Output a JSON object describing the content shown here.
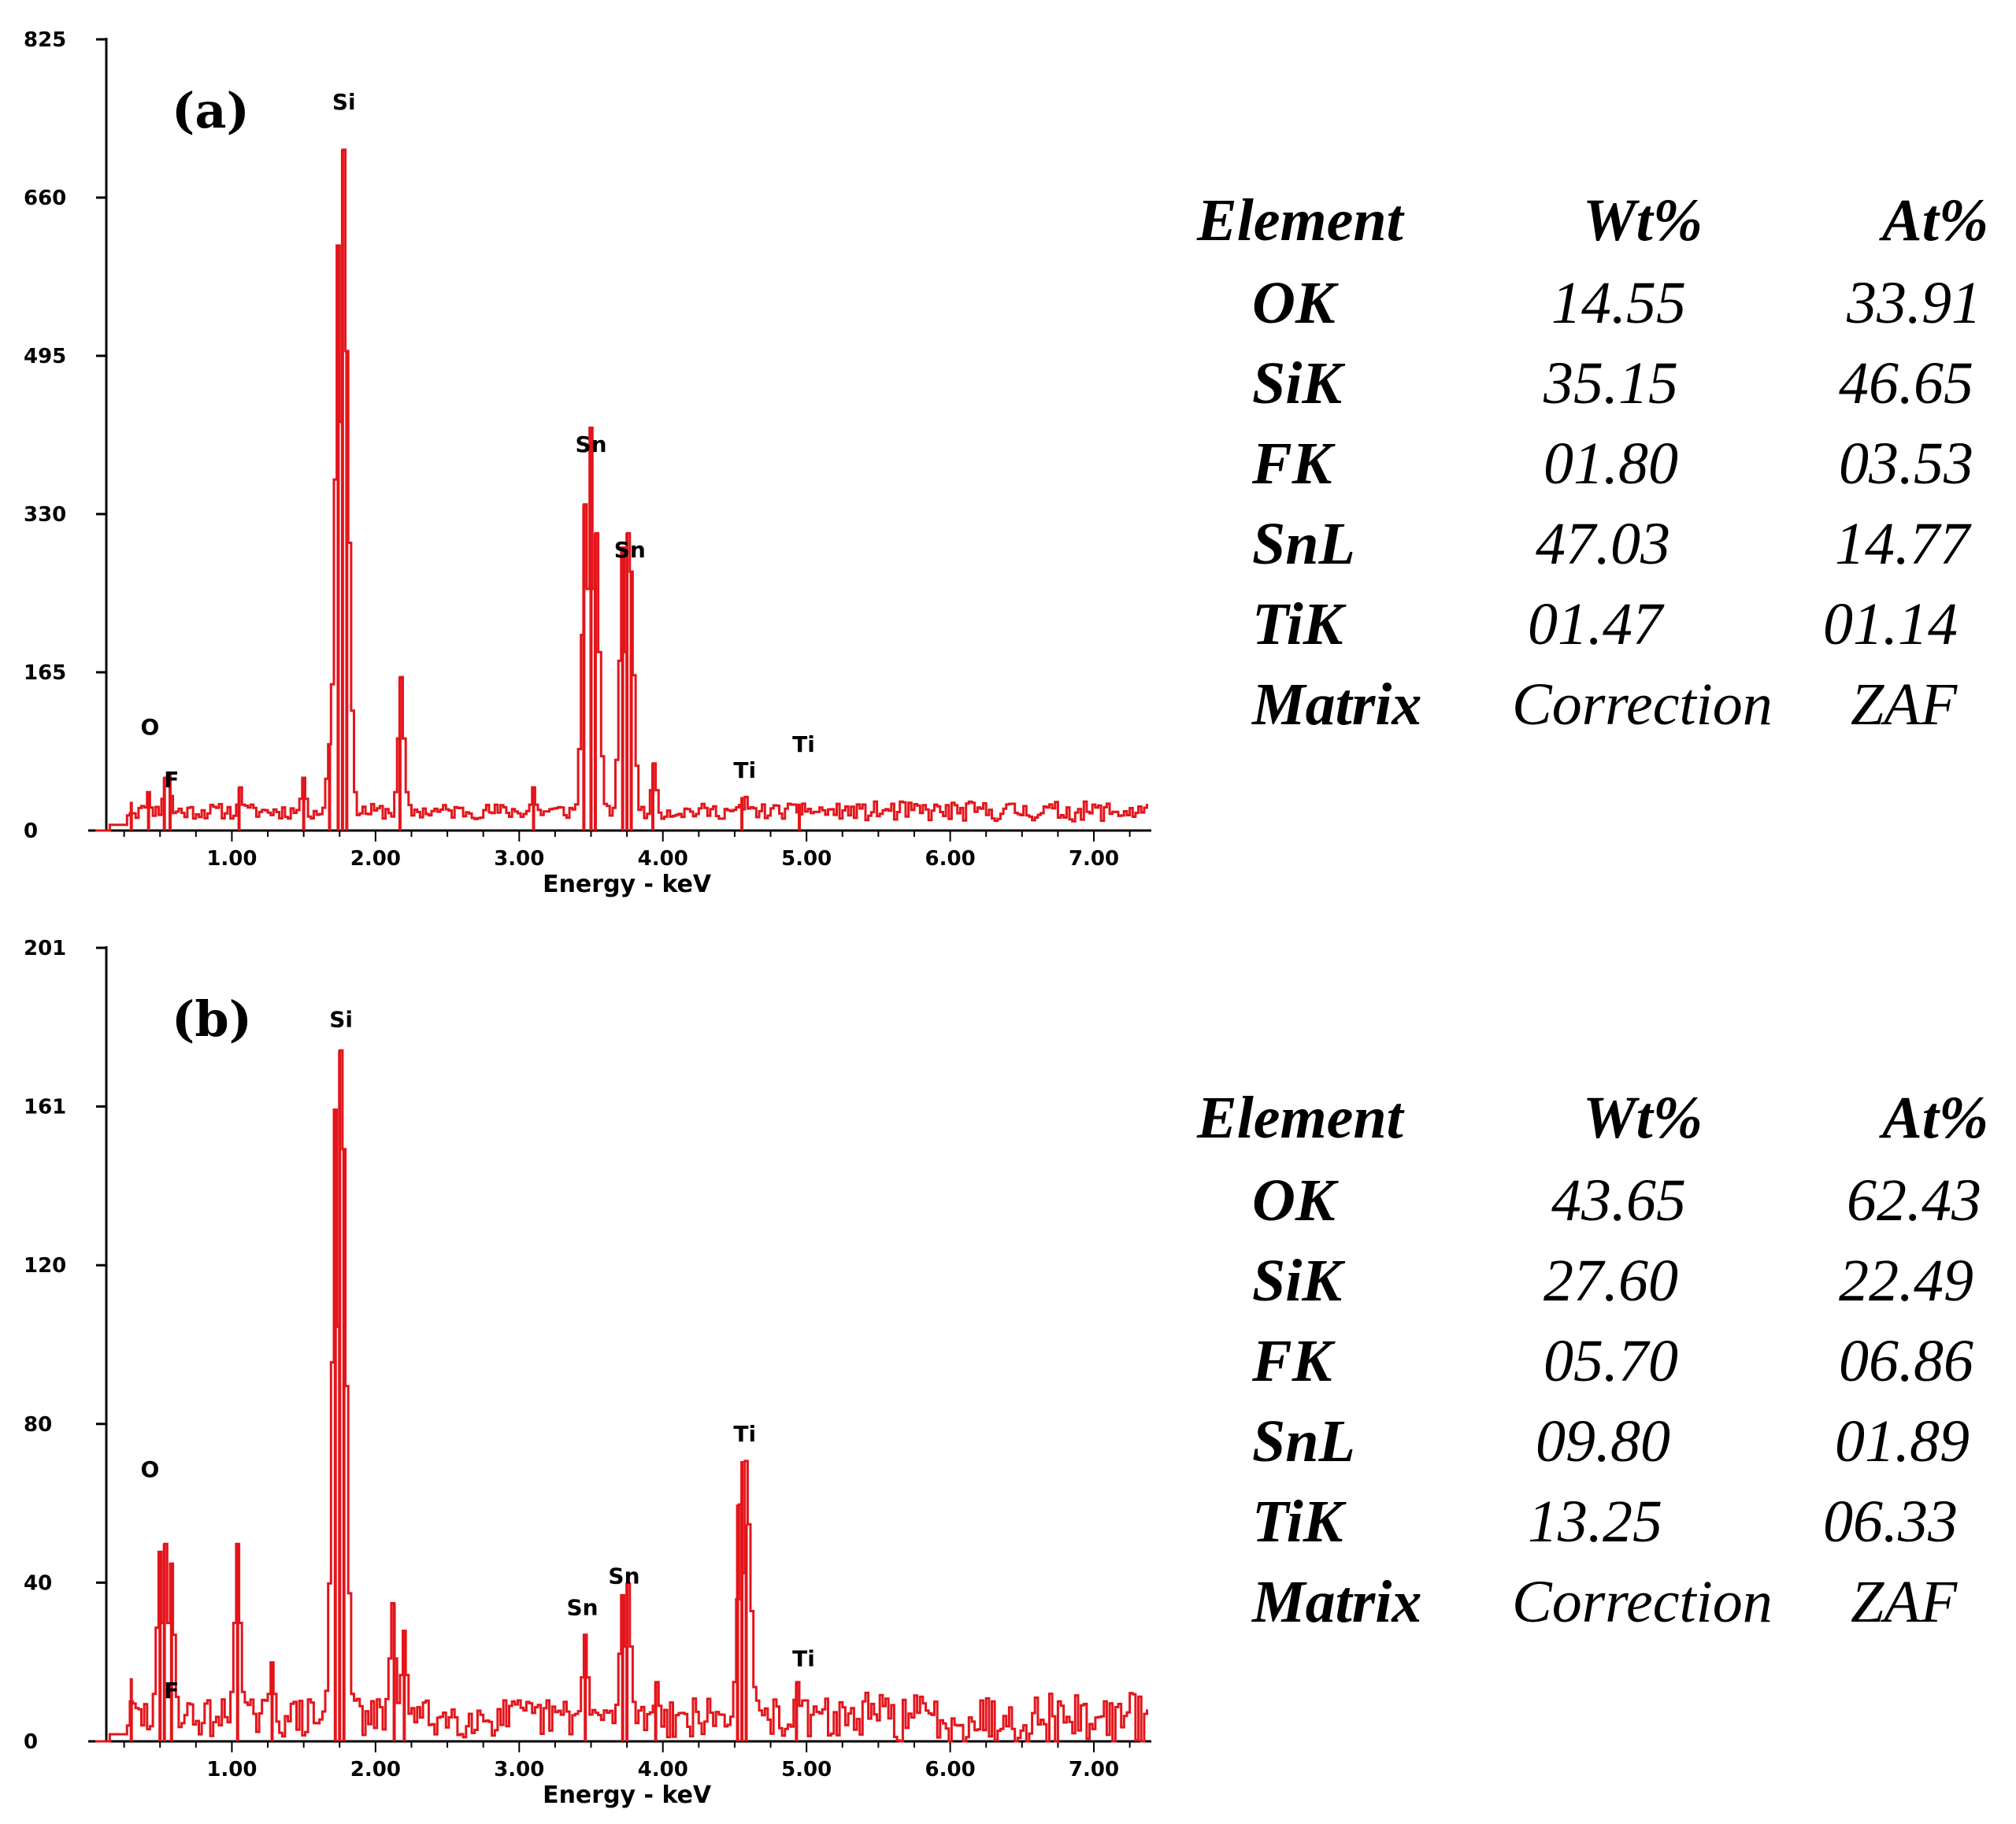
{
  "colors": {
    "spectrum": "#e3151b",
    "axis": "#000000"
  },
  "chart_data": [
    {
      "type": "line",
      "panel_label": "(a)",
      "title": "",
      "xlabel": "Energy - keV",
      "ylabel": "",
      "xlim": [
        0,
        7.4
      ],
      "ylim": [
        0,
        825
      ],
      "yticks": [
        "0",
        "165",
        "330",
        "495",
        "660",
        "825"
      ],
      "xticks": [
        "1.00",
        "2.00",
        "3.00",
        "4.00",
        "5.00",
        "6.00",
        "7.00"
      ],
      "peaks": [
        {
          "x": 0.3,
          "y": 30
        },
        {
          "x": 0.42,
          "y": 40
        },
        {
          "x": 0.53,
          "y": 55
        },
        {
          "x": 0.57,
          "y": 60
        },
        {
          "x": 1.05,
          "y": 45
        },
        {
          "x": 1.5,
          "y": 55
        },
        {
          "x": 1.68,
          "y": 90
        },
        {
          "x": 1.74,
          "y": 610
        },
        {
          "x": 1.77,
          "y": 710
        },
        {
          "x": 1.8,
          "y": 500
        },
        {
          "x": 2.17,
          "y": 160
        },
        {
          "x": 3.1,
          "y": 45
        },
        {
          "x": 3.45,
          "y": 340
        },
        {
          "x": 3.5,
          "y": 420
        },
        {
          "x": 3.53,
          "y": 310
        },
        {
          "x": 3.72,
          "y": 295
        },
        {
          "x": 3.75,
          "y": 310
        },
        {
          "x": 3.78,
          "y": 270
        },
        {
          "x": 3.93,
          "y": 70
        },
        {
          "x": 4.55,
          "y": 35
        },
        {
          "x": 4.95,
          "y": 28
        }
      ],
      "peak_labels": [
        {
          "text": "O",
          "x": 0.43,
          "y": 100
        },
        {
          "text": "F",
          "x": 0.58,
          "y": 45
        },
        {
          "text": "Si",
          "x": 1.78,
          "y": 752
        },
        {
          "text": "Sn",
          "x": 3.5,
          "y": 395
        },
        {
          "text": "Sn",
          "x": 3.77,
          "y": 285
        },
        {
          "text": "Ti",
          "x": 4.57,
          "y": 55
        },
        {
          "text": "Ti",
          "x": 4.98,
          "y": 82
        }
      ],
      "table": {
        "headers": [
          "Element",
          "Wt%",
          "At%"
        ],
        "rows": [
          {
            "element": "OK",
            "wt": "14.55",
            "at": "33.91"
          },
          {
            "element": "SiK",
            "wt": "35.15",
            "at": "46.65"
          },
          {
            "element": "FK",
            "wt": "01.80",
            "at": "03.53"
          },
          {
            "element": "SnL",
            "wt": "47.03",
            "at": "14.77"
          },
          {
            "element": "TiK",
            "wt": "01.47",
            "at": "01.14"
          },
          {
            "element": "Matrix",
            "wt": "Correction",
            "at": "ZAF"
          }
        ]
      }
    },
    {
      "type": "line",
      "panel_label": "(b)",
      "title": "",
      "xlabel": "Energy - keV",
      "ylabel": "",
      "xlim": [
        0,
        7.4
      ],
      "ylim": [
        0,
        201
      ],
      "yticks": [
        "0",
        "40",
        "80",
        "120",
        "161",
        "201"
      ],
      "xticks": [
        "1.00",
        "2.00",
        "3.00",
        "4.00",
        "5.00",
        "6.00",
        "7.00"
      ],
      "peaks": [
        {
          "x": 0.3,
          "y": 16
        },
        {
          "x": 0.5,
          "y": 48
        },
        {
          "x": 0.53,
          "y": 50
        },
        {
          "x": 0.58,
          "y": 45
        },
        {
          "x": 1.04,
          "y": 50
        },
        {
          "x": 1.28,
          "y": 20
        },
        {
          "x": 1.72,
          "y": 160
        },
        {
          "x": 1.75,
          "y": 175
        },
        {
          "x": 1.78,
          "y": 150
        },
        {
          "x": 2.13,
          "y": 35
        },
        {
          "x": 2.2,
          "y": 28
        },
        {
          "x": 3.46,
          "y": 27
        },
        {
          "x": 3.72,
          "y": 37
        },
        {
          "x": 3.75,
          "y": 40
        },
        {
          "x": 3.95,
          "y": 15
        },
        {
          "x": 4.52,
          "y": 60
        },
        {
          "x": 4.55,
          "y": 71
        },
        {
          "x": 4.58,
          "y": 55
        },
        {
          "x": 4.93,
          "y": 15
        }
      ],
      "peak_labels": [
        {
          "text": "O",
          "x": 0.43,
          "y": 67
        },
        {
          "text": "F",
          "x": 0.58,
          "y": 11
        },
        {
          "text": "Si",
          "x": 1.76,
          "y": 181
        },
        {
          "text": "Sn",
          "x": 3.44,
          "y": 32
        },
        {
          "text": "Sn",
          "x": 3.73,
          "y": 40
        },
        {
          "text": "Ti",
          "x": 4.57,
          "y": 76
        },
        {
          "text": "Ti",
          "x": 4.98,
          "y": 19
        }
      ],
      "table": {
        "headers": [
          "Element",
          "Wt%",
          "At%"
        ],
        "rows": [
          {
            "element": "OK",
            "wt": "43.65",
            "at": "62.43"
          },
          {
            "element": "SiK",
            "wt": "27.60",
            "at": "22.49"
          },
          {
            "element": "FK",
            "wt": "05.70",
            "at": "06.86"
          },
          {
            "element": "SnL",
            "wt": "09.80",
            "at": "01.89"
          },
          {
            "element": "TiK",
            "wt": "13.25",
            "at": "06.33"
          },
          {
            "element": "Matrix",
            "wt": "Correction",
            "at": "ZAF"
          }
        ]
      }
    }
  ]
}
